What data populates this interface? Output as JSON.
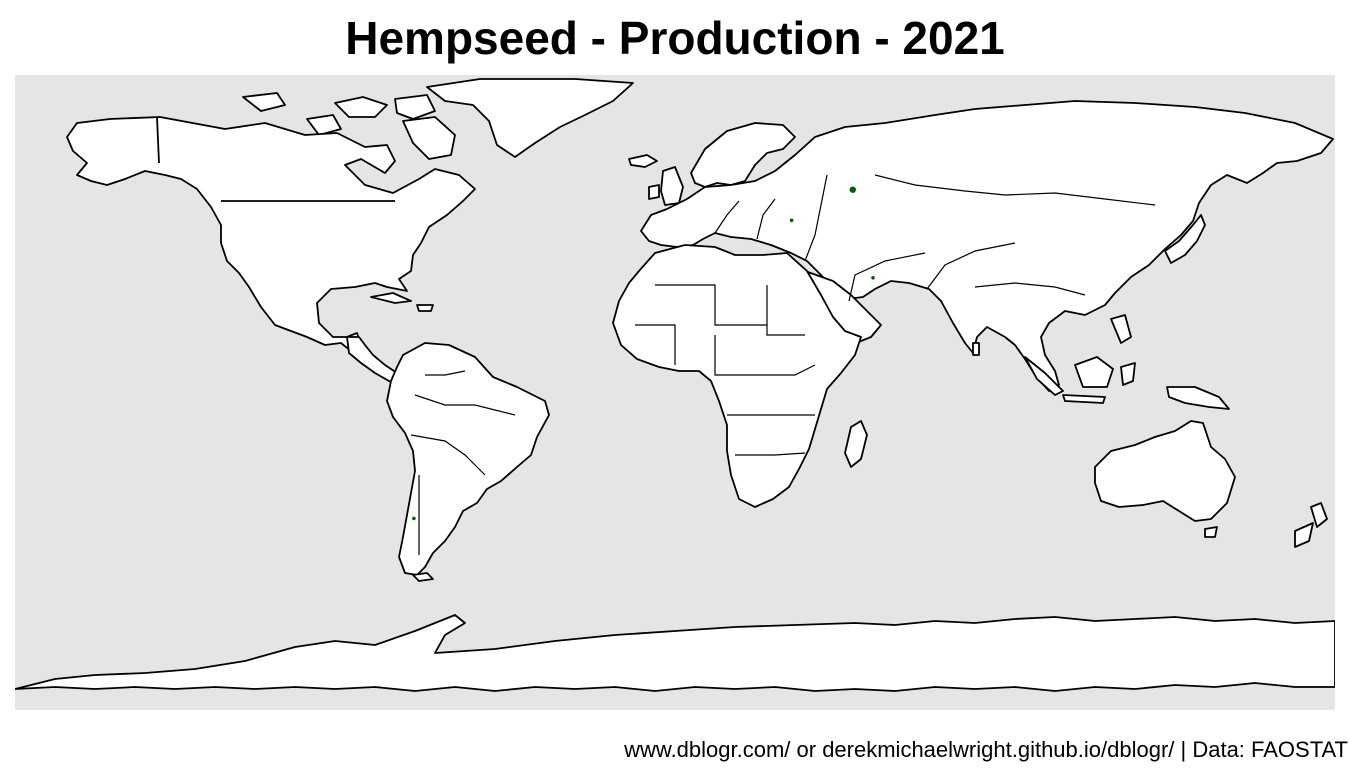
{
  "title": "Hempseed - Production - 2021",
  "caption": "www.dblogr.com/ or derekmichaelwright.github.io/dblogr/ | Data: FAOSTAT",
  "colors": {
    "ocean": "#e5e5e5",
    "land": "#ffffff",
    "border": "#000000",
    "production_marker": "#006400"
  },
  "map": {
    "projection": "equirectangular",
    "extent": {
      "lon": [
        -180,
        180
      ],
      "lat": [
        -90,
        90
      ]
    },
    "legend": "none"
  },
  "production_points": [
    {
      "name": "Russia",
      "lon": 48.5,
      "lat": 57.5,
      "size": "medium"
    },
    {
      "name": "Ukraine",
      "lon": 31.8,
      "lat": 48.8,
      "size": "small"
    },
    {
      "name": "Iran",
      "lon": 54.0,
      "lat": 32.5,
      "size": "small"
    },
    {
      "name": "Chile",
      "lon": -71.2,
      "lat": -35.7,
      "size": "small"
    }
  ]
}
